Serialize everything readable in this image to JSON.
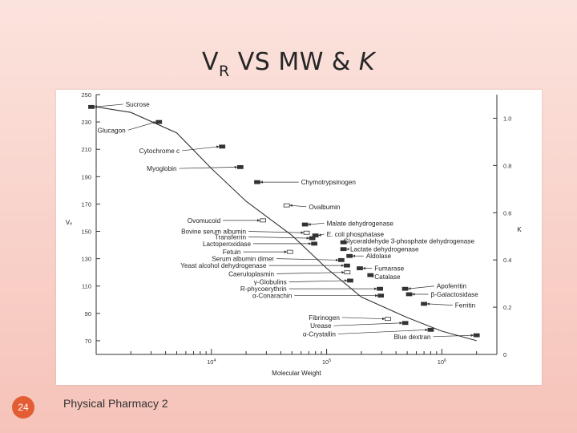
{
  "slide": {
    "title_main": "V",
    "title_sub": "R",
    "title_rest": " VS MW & ",
    "title_k": "K",
    "page_number": "24",
    "footer": "Physical Pharmacy 2"
  },
  "chart_data": {
    "type": "line",
    "xlabel": "Molecular Weight",
    "ylabel": "Vₑ",
    "y2label": "K",
    "x_scale": "log",
    "xlim": [
      1000,
      3000000
    ],
    "ylim": [
      60,
      250
    ],
    "y2lim": [
      0,
      1.1
    ],
    "y_ticks": [
      70,
      90,
      110,
      130,
      150,
      170,
      190,
      210,
      230,
      250
    ],
    "y2_ticks": [
      0,
      0.2,
      0.4,
      0.6,
      0.8,
      1.0
    ],
    "y2_tick_labels": [
      "0",
      "0.2",
      "0.4",
      "0.6",
      "0.8",
      "1.0"
    ],
    "x_tick_labels": [
      {
        "value": 10000,
        "base": "10",
        "exp": "4"
      },
      {
        "value": 100000,
        "base": "10",
        "exp": "5"
      },
      {
        "value": 1000000,
        "base": "10",
        "exp": "6"
      }
    ],
    "curve": {
      "x": [
        1000,
        2000,
        5000,
        10000,
        20000,
        50000,
        100000,
        200000,
        500000,
        1000000,
        2000000
      ],
      "y": [
        241,
        237,
        222,
        196,
        172,
        147,
        123,
        102,
        87,
        77,
        70
      ]
    },
    "proteins": [
      {
        "name": "Sucrose",
        "mw": 342,
        "ve": 241,
        "label_mw": 1800,
        "label_ve": 243
      },
      {
        "name": "Glucagon",
        "mw": 3500,
        "ve": 230,
        "label_mw": 1800,
        "label_ve": 224
      },
      {
        "name": "Cytochrome c",
        "mw": 12400,
        "ve": 212,
        "label_mw": 5300,
        "label_ve": 209
      },
      {
        "name": "Myoglobin",
        "mw": 17800,
        "ve": 197,
        "label_mw": 5000,
        "label_ve": 196
      },
      {
        "name": "Chymotrypsinogen",
        "mw": 25000,
        "ve": 186,
        "label_mw": 60000,
        "label_ve": 186
      },
      {
        "name": "Ovalbumin",
        "mw": 45000,
        "ve": 169,
        "label_mw": 70000,
        "label_ve": 168
      },
      {
        "name": "Ovomucoid",
        "mw": 28000,
        "ve": 158,
        "label_mw": 12000,
        "label_ve": 158
      },
      {
        "name": "Malate dehydrogenase",
        "mw": 65000,
        "ve": 155,
        "label_mw": 100000,
        "label_ve": 156
      },
      {
        "name": "Bovine serum albumin",
        "mw": 67000,
        "ve": 149,
        "label_mw": 20000,
        "label_ve": 150
      },
      {
        "name": "E. coli phosphatase",
        "mw": 80000,
        "ve": 147,
        "label_mw": 100000,
        "label_ve": 148
      },
      {
        "name": "Transferrin",
        "mw": 75000,
        "ve": 145,
        "label_mw": 20000,
        "label_ve": 146
      },
      {
        "name": "Glyceraldehyde 3-phosphate dehydrogenase",
        "mw": 140000,
        "ve": 142,
        "label_mw": 140000,
        "label_ve": 143
      },
      {
        "name": "Lactoperoxidase",
        "mw": 78000,
        "ve": 141,
        "label_mw": 22000,
        "label_ve": 141
      },
      {
        "name": "Lactate dehydrogenase",
        "mw": 140000,
        "ve": 137,
        "label_mw": 160000,
        "label_ve": 137
      },
      {
        "name": "Fetuin",
        "mw": 48000,
        "ve": 135,
        "label_mw": 18000,
        "label_ve": 135
      },
      {
        "name": "Aldolase",
        "mw": 158000,
        "ve": 132,
        "label_mw": 220000,
        "label_ve": 132
      },
      {
        "name": "Serum albumin dimer",
        "mw": 134000,
        "ve": 129,
        "label_mw": 35000,
        "label_ve": 130
      },
      {
        "name": "Yeast alcohol dehydrogenase",
        "mw": 150000,
        "ve": 125,
        "label_mw": 30000,
        "label_ve": 125
      },
      {
        "name": "Fumarase",
        "mw": 194000,
        "ve": 123,
        "label_mw": 260000,
        "label_ve": 123
      },
      {
        "name": "Caeruloplasmin",
        "mw": 151000,
        "ve": 120,
        "label_mw": 35000,
        "label_ve": 119
      },
      {
        "name": "Catalase",
        "mw": 240000,
        "ve": 118,
        "label_mw": 260000,
        "label_ve": 117
      },
      {
        "name": "γ-Globulins",
        "mw": 160000,
        "ve": 114,
        "label_mw": 45000,
        "label_ve": 113
      },
      {
        "name": "Apoferritin",
        "mw": 480000,
        "ve": 108,
        "label_mw": 900000,
        "label_ve": 110
      },
      {
        "name": "R-phycoerythrin",
        "mw": 290000,
        "ve": 108,
        "label_mw": 45000,
        "label_ve": 108
      },
      {
        "name": "β-Galactosidase",
        "mw": 520000,
        "ve": 104,
        "label_mw": 800000,
        "label_ve": 104
      },
      {
        "name": "α-Conarachin",
        "mw": 295000,
        "ve": 103,
        "label_mw": 50000,
        "label_ve": 103
      },
      {
        "name": "Ferritin",
        "mw": 700000,
        "ve": 97,
        "label_mw": 1300000,
        "label_ve": 96
      },
      {
        "name": "Fibrinogen",
        "mw": 340000,
        "ve": 86,
        "label_mw": 130000,
        "label_ve": 87
      },
      {
        "name": "Urease",
        "mw": 480000,
        "ve": 83,
        "label_mw": 110000,
        "label_ve": 81
      },
      {
        "name": "α-Crystallin",
        "mw": 800000,
        "ve": 78,
        "label_mw": 120000,
        "label_ve": 75
      },
      {
        "name": "Blue dextran",
        "mw": 2000000,
        "ve": 74,
        "label_mw": 800000,
        "label_ve": 73
      }
    ]
  }
}
